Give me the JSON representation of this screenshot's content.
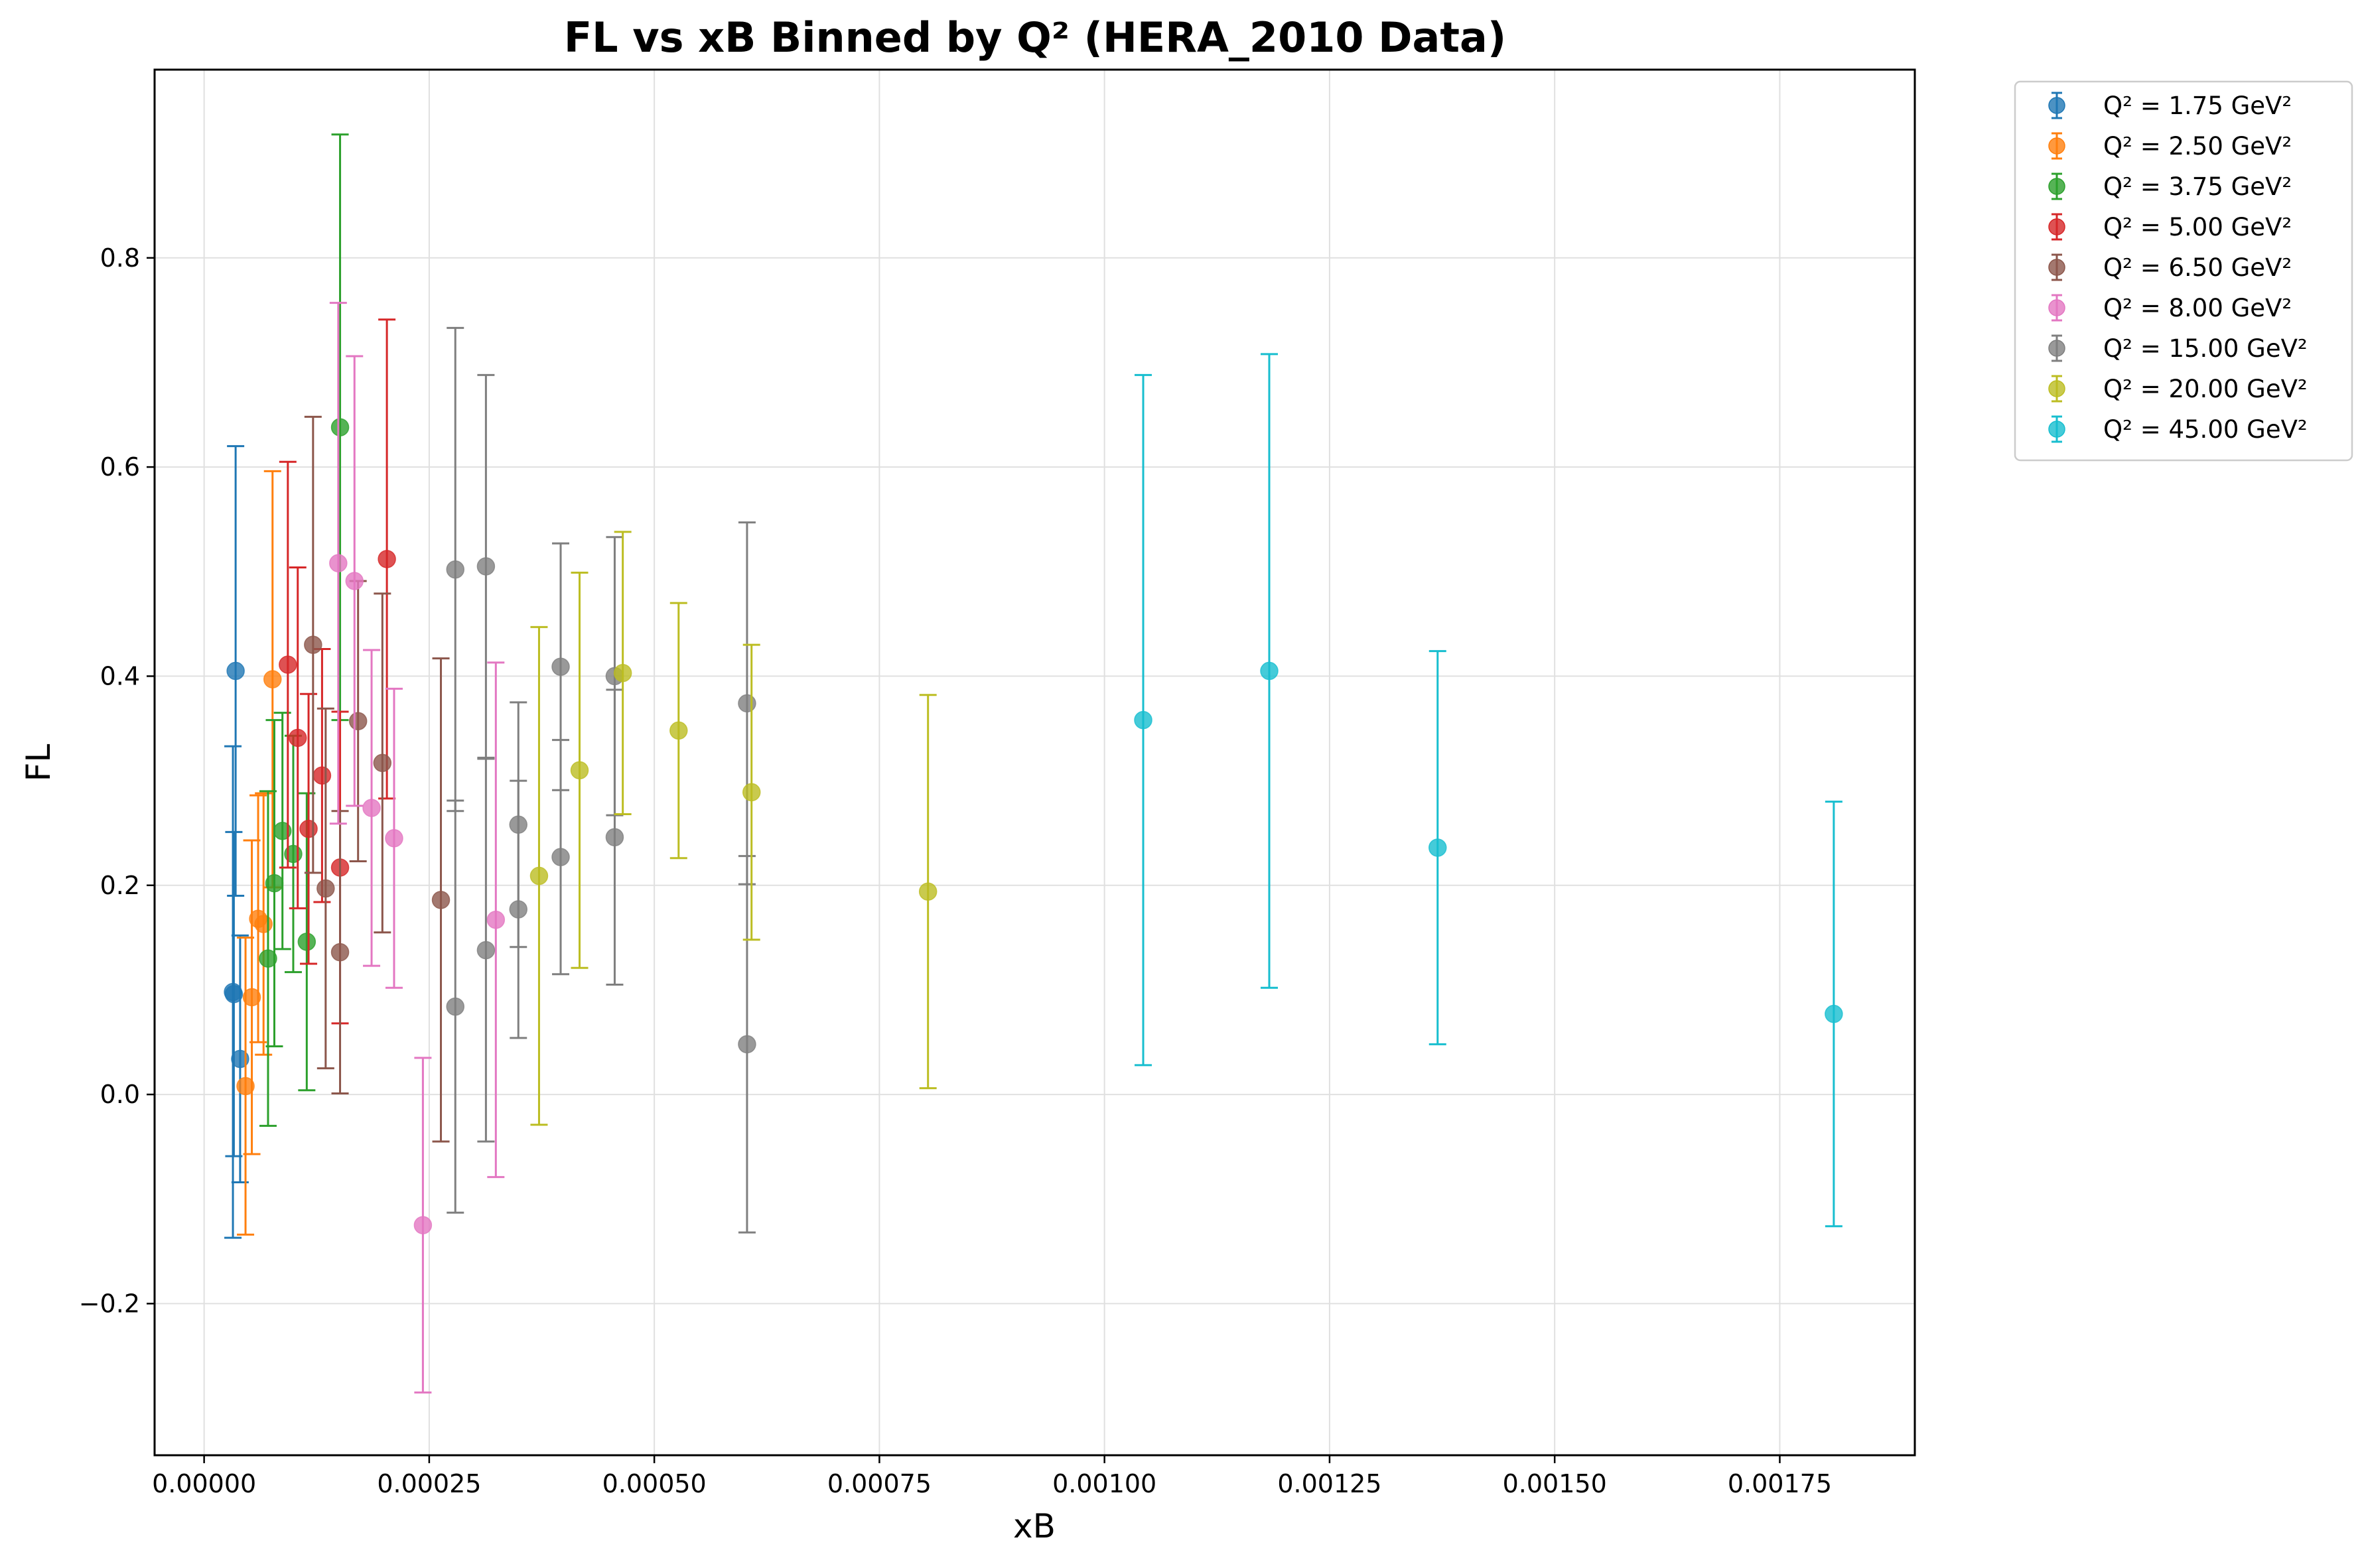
{
  "chart_data": {
    "type": "scatter",
    "title": "FL vs xB Binned by Q² (HERA_2010 Data)",
    "xlabel": "xB",
    "ylabel": "FL",
    "xlim": [
      -5.5e-05,
      0.0019
    ],
    "ylim": [
      -0.345,
      0.98
    ],
    "x_ticks": [
      0,
      0.00025,
      0.0005,
      0.00075,
      0.001,
      0.00125,
      0.0015,
      0.00175
    ],
    "x_tick_labels": [
      "0.00000",
      "0.00025",
      "0.00050",
      "0.00075",
      "0.00100",
      "0.00125",
      "0.00150",
      "0.00175"
    ],
    "y_ticks": [
      -0.2,
      0,
      0.2,
      0.4,
      0.6,
      0.8
    ],
    "y_tick_labels": [
      "−0.2",
      "0.0",
      "0.2",
      "0.4",
      "0.6",
      "0.8"
    ],
    "grid": true,
    "legend_position": "outside-top-right",
    "series": [
      {
        "name": "Q² = 1.75 GeV²",
        "color": "#1f77b4",
        "points": [
          {
            "x": 3.2e-05,
            "y": 0.098,
            "err": 0.235
          },
          {
            "x": 3.5e-05,
            "y": 0.405,
            "err": 0.215
          },
          {
            "x": 4e-05,
            "y": 0.034,
            "err": 0.118
          },
          {
            "x": 3.3e-05,
            "y": 0.096,
            "err": 0.155
          }
        ]
      },
      {
        "name": "Q² = 2.50 GeV²",
        "color": "#ff7f0e",
        "points": [
          {
            "x": 4.6e-05,
            "y": 0.008,
            "err": 0.142
          },
          {
            "x": 5.3e-05,
            "y": 0.093,
            "err": 0.15
          },
          {
            "x": 6e-05,
            "y": 0.168,
            "err": 0.118
          },
          {
            "x": 6.6e-05,
            "y": 0.163,
            "err": 0.125
          },
          {
            "x": 7.6e-05,
            "y": 0.397,
            "err": 0.199
          }
        ]
      },
      {
        "name": "Q² = 3.75 GeV²",
        "color": "#2ca02c",
        "points": [
          {
            "x": 7.1e-05,
            "y": 0.13,
            "err": 0.16
          },
          {
            "x": 7.8e-05,
            "y": 0.202,
            "err": 0.156
          },
          {
            "x": 8.7e-05,
            "y": 0.252,
            "err": 0.113
          },
          {
            "x": 9.9e-05,
            "y": 0.23,
            "err": 0.113
          },
          {
            "x": 0.000114,
            "y": 0.146,
            "err": 0.142
          },
          {
            "x": 0.000151,
            "y": 0.638,
            "err": 0.28
          }
        ]
      },
      {
        "name": "Q² = 5.00 GeV²",
        "color": "#d62728",
        "points": [
          {
            "x": 9.3e-05,
            "y": 0.411,
            "err": 0.194
          },
          {
            "x": 0.000104,
            "y": 0.341,
            "err": 0.163
          },
          {
            "x": 0.000116,
            "y": 0.254,
            "err": 0.129
          },
          {
            "x": 0.000131,
            "y": 0.305,
            "err": 0.121
          },
          {
            "x": 0.000151,
            "y": 0.217,
            "err": 0.149
          },
          {
            "x": 0.000203,
            "y": 0.512,
            "err": 0.229
          }
        ]
      },
      {
        "name": "Q² = 6.50 GeV²",
        "color": "#8c564b",
        "points": [
          {
            "x": 0.000121,
            "y": 0.43,
            "err": 0.218
          },
          {
            "x": 0.000135,
            "y": 0.197,
            "err": 0.172
          },
          {
            "x": 0.000151,
            "y": 0.136,
            "err": 0.135
          },
          {
            "x": 0.000171,
            "y": 0.357,
            "err": 0.134
          },
          {
            "x": 0.000198,
            "y": 0.317,
            "err": 0.162
          },
          {
            "x": 0.000263,
            "y": 0.186,
            "err": 0.231
          }
        ]
      },
      {
        "name": "Q² = 8.00 GeV²",
        "color": "#e377c2",
        "points": [
          {
            "x": 0.000149,
            "y": 0.508,
            "err": 0.249
          },
          {
            "x": 0.000167,
            "y": 0.491,
            "err": 0.215
          },
          {
            "x": 0.000186,
            "y": 0.274,
            "err": 0.151
          },
          {
            "x": 0.000211,
            "y": 0.245,
            "err": 0.143
          },
          {
            "x": 0.000243,
            "y": -0.125,
            "err": 0.16
          },
          {
            "x": 0.000324,
            "y": 0.167,
            "err": 0.246
          }
        ]
      },
      {
        "name": "Q² = 15.00 GeV²",
        "color": "#7f7f7f",
        "points": [
          {
            "x": 0.000279,
            "y": 0.502,
            "err": 0.231
          },
          {
            "x": 0.000279,
            "y": 0.084,
            "err": 0.197
          },
          {
            "x": 0.000313,
            "y": 0.505,
            "err": 0.183
          },
          {
            "x": 0.000313,
            "y": 0.138,
            "err": 0.183
          },
          {
            "x": 0.000349,
            "y": 0.258,
            "err": 0.117
          },
          {
            "x": 0.000349,
            "y": 0.177,
            "err": 0.123
          },
          {
            "x": 0.000396,
            "y": 0.409,
            "err": 0.118
          },
          {
            "x": 0.000396,
            "y": 0.227,
            "err": 0.112
          },
          {
            "x": 0.000456,
            "y": 0.4,
            "err": 0.133
          },
          {
            "x": 0.000456,
            "y": 0.246,
            "err": 0.141
          },
          {
            "x": 0.000603,
            "y": 0.374,
            "err": 0.173
          },
          {
            "x": 0.000603,
            "y": 0.048,
            "err": 0.18
          }
        ]
      },
      {
        "name": "Q² = 20.00 GeV²",
        "color": "#bcbd22",
        "points": [
          {
            "x": 0.000372,
            "y": 0.209,
            "err": 0.238
          },
          {
            "x": 0.000417,
            "y": 0.31,
            "err": 0.189
          },
          {
            "x": 0.000465,
            "y": 0.403,
            "err": 0.135
          },
          {
            "x": 0.000527,
            "y": 0.348,
            "err": 0.122
          },
          {
            "x": 0.000608,
            "y": 0.289,
            "err": 0.141
          },
          {
            "x": 0.000804,
            "y": 0.194,
            "err": 0.188
          }
        ]
      },
      {
        "name": "Q² = 45.00 GeV²",
        "color": "#17becf",
        "points": [
          {
            "x": 0.001043,
            "y": 0.358,
            "err": 0.33
          },
          {
            "x": 0.001183,
            "y": 0.405,
            "err": 0.303
          },
          {
            "x": 0.00137,
            "y": 0.236,
            "err": 0.188
          },
          {
            "x": 0.00181,
            "y": 0.077,
            "err": 0.203
          }
        ]
      }
    ]
  }
}
